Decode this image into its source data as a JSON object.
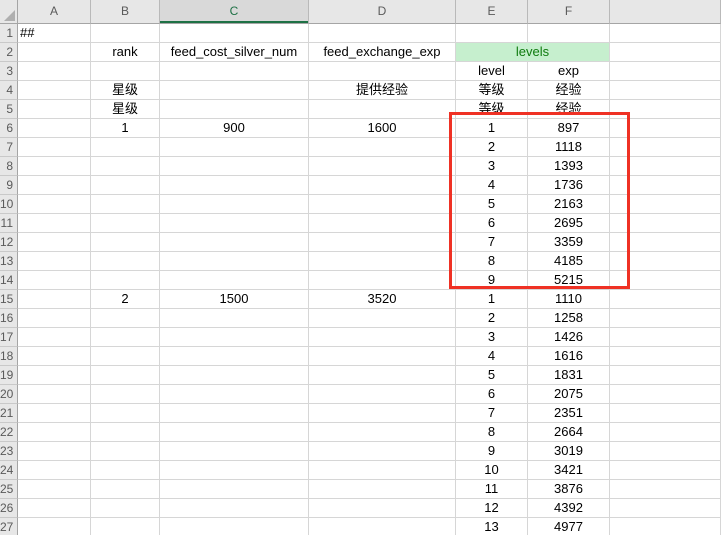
{
  "sheet": {
    "column_headers": [
      "A",
      "B",
      "C",
      "D",
      "E",
      "F",
      ""
    ],
    "selected_column": "C",
    "row_numbers": [
      "1",
      "2",
      "3",
      "4",
      "5",
      "6",
      "7",
      "8",
      "9",
      "10",
      "11",
      "12",
      "13",
      "14",
      "15",
      "16",
      "17",
      "18",
      "19",
      "20",
      "21",
      "22",
      "23",
      "24",
      "25",
      "26",
      "27"
    ],
    "cells": {
      "A1": "##",
      "B2": "rank",
      "C2": "feed_cost_silver_num",
      "D2": "feed_exchange_exp",
      "E2": "levels",
      "E3": "level",
      "F3": "exp",
      "B4": "星级",
      "D4": "提供经验",
      "E4": "等级",
      "F4": "经验",
      "B5": "星级",
      "E5": "等级",
      "F5": "经验",
      "B6": "1",
      "C6": "900",
      "D6": "1600",
      "E6": "1",
      "F6": "897",
      "E7": "2",
      "F7": "1118",
      "E8": "3",
      "F8": "1393",
      "E9": "4",
      "F9": "1736",
      "E10": "5",
      "F10": "2163",
      "E11": "6",
      "F11": "2695",
      "E12": "7",
      "F12": "3359",
      "E13": "8",
      "F13": "4185",
      "E14": "9",
      "F14": "5215",
      "B15": "2",
      "C15": "1500",
      "D15": "3520",
      "E15": "1",
      "F15": "1110",
      "E16": "2",
      "F16": "1258",
      "E17": "3",
      "F17": "1426",
      "E18": "4",
      "F18": "1616",
      "E19": "5",
      "F19": "1831",
      "E20": "6",
      "F20": "2075",
      "E21": "7",
      "F21": "2351",
      "E22": "8",
      "F22": "2664",
      "E23": "9",
      "F23": "3019",
      "E24": "10",
      "F24": "3421",
      "E25": "11",
      "F25": "3876",
      "E26": "12",
      "F26": "4392",
      "E27": "13",
      "F27": "4977"
    },
    "merges": [
      {
        "ref": "E2",
        "span_cols": 2,
        "style_class": "good"
      }
    ],
    "left_aligned_cells": [
      "A1"
    ],
    "annotation": {
      "type": "red-box",
      "covers": "E6:F14"
    },
    "colors": {
      "good_cell_bg": "#C6EFCE",
      "good_cell_text": "#0F7B0F",
      "selection_green": "#1E7145",
      "red_box": "#EF3124",
      "header_bg": "#E7E7E7",
      "header_selected_bg": "#D9D9D9",
      "gridline": "#D6D6D6"
    }
  }
}
